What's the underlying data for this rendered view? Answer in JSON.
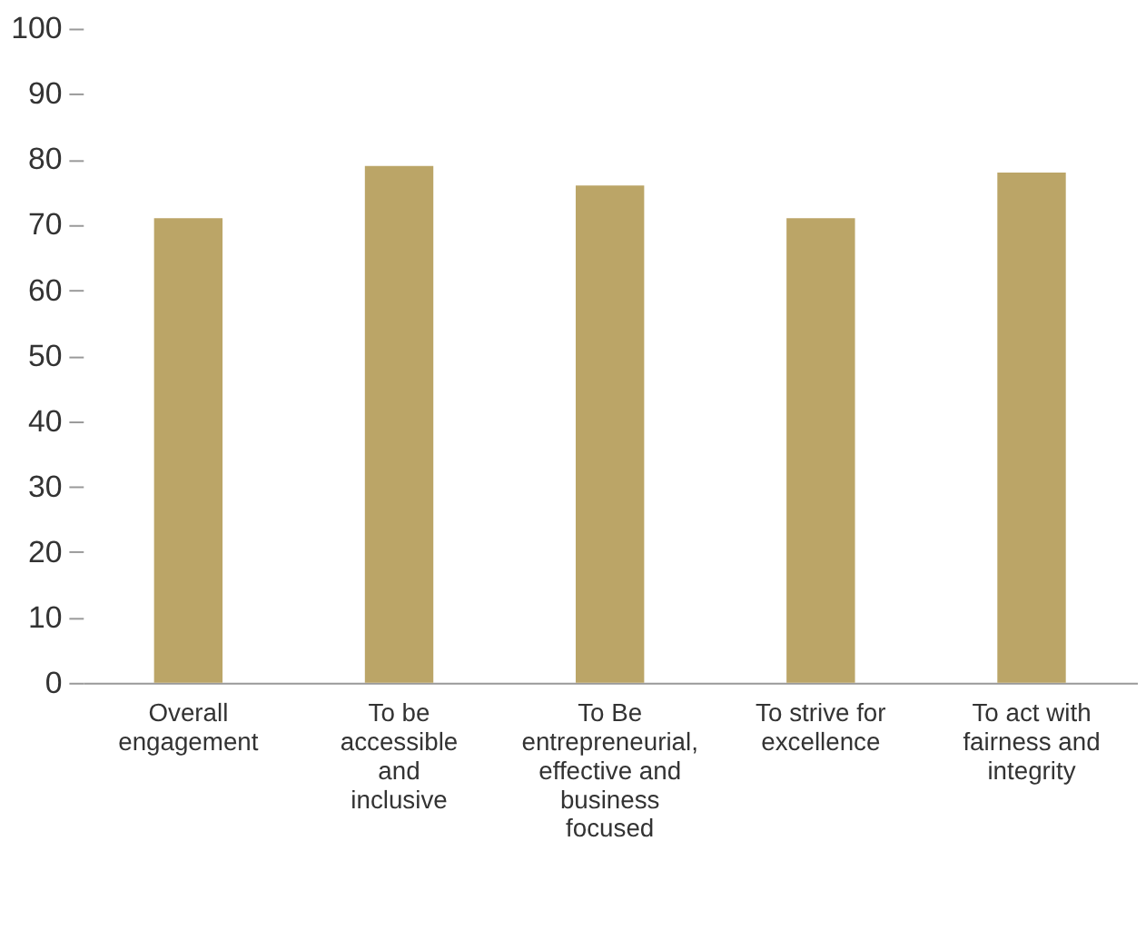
{
  "chart_data": {
    "type": "bar",
    "categories": [
      "Overall\nengagement",
      "To be\naccessible\nand\ninclusive",
      "To Be\nentrepreneurial,\neffective and\nbusiness\nfocused",
      "To strive for\nexcellence",
      "To act with\nfairness and\nintegrity"
    ],
    "values": [
      71,
      79,
      76,
      71,
      78
    ],
    "color": "#bba567",
    "ylim": [
      0,
      100
    ],
    "yticks": [
      0,
      10,
      20,
      30,
      40,
      50,
      60,
      70,
      80,
      90,
      100
    ],
    "grid": false
  }
}
